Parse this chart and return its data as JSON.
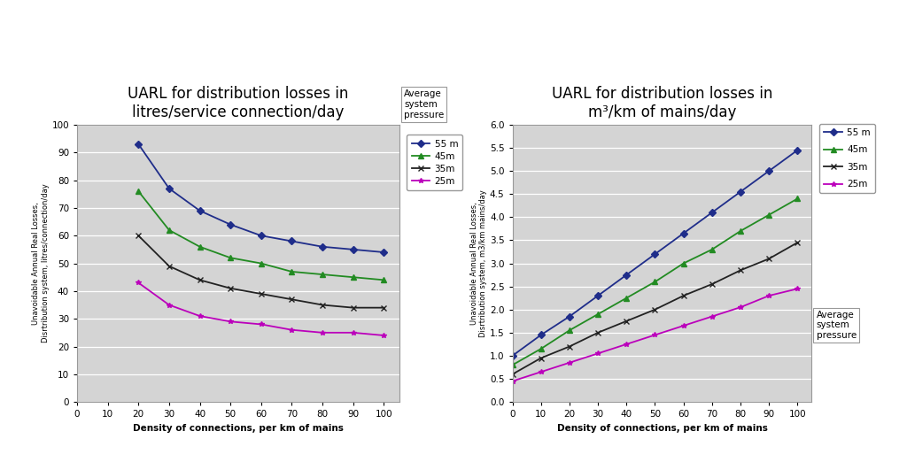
{
  "chart1": {
    "title": "UARL for distribution losses in\nlitres/service connection/day",
    "xlabel": "Density of connections, per km of mains",
    "ylabel": "Unavoidable Annual Real Losses,\nDisrtribution system, litres/connection/day",
    "xlim": [
      0,
      105
    ],
    "ylim": [
      0,
      100
    ],
    "xticks": [
      0,
      10,
      20,
      30,
      40,
      50,
      60,
      70,
      80,
      90,
      100
    ],
    "yticks": [
      0,
      10,
      20,
      30,
      40,
      50,
      60,
      70,
      80,
      90,
      100
    ],
    "series": {
      "55 m": {
        "x": [
          20,
          30,
          40,
          50,
          60,
          70,
          80,
          90,
          100
        ],
        "y": [
          93,
          77,
          69,
          64,
          60,
          58,
          56,
          55,
          54
        ],
        "color": "#1F2D8A",
        "marker": "D",
        "linestyle": "-"
      },
      "45m": {
        "x": [
          20,
          30,
          40,
          50,
          60,
          70,
          80,
          90,
          100
        ],
        "y": [
          76,
          62,
          56,
          52,
          50,
          47,
          46,
          45,
          44
        ],
        "color": "#228B22",
        "marker": "^",
        "linestyle": "-"
      },
      "35m": {
        "x": [
          20,
          30,
          40,
          50,
          60,
          70,
          80,
          90,
          100
        ],
        "y": [
          60,
          49,
          44,
          41,
          39,
          37,
          35,
          34,
          34
        ],
        "color": "#222222",
        "marker": "x",
        "linestyle": "-"
      },
      "25m": {
        "x": [
          20,
          30,
          40,
          50,
          60,
          70,
          80,
          90,
          100
        ],
        "y": [
          43,
          35,
          31,
          29,
          28,
          26,
          25,
          25,
          24
        ],
        "color": "#BB00BB",
        "marker": "*",
        "linestyle": "-"
      }
    }
  },
  "chart2": {
    "title": "UARL for distribution losses in\nm³/km of mains/day",
    "xlabel": "Density of connections, per km of mains",
    "ylabel": "Unavoidable Annual Real Losses,\nDisrtribution system, m3/km mains/day",
    "xlim": [
      0,
      105
    ],
    "ylim": [
      0.0,
      6.0
    ],
    "xticks": [
      0,
      10,
      20,
      30,
      40,
      50,
      60,
      70,
      80,
      90,
      100
    ],
    "yticks": [
      0.0,
      0.5,
      1.0,
      1.5,
      2.0,
      2.5,
      3.0,
      3.5,
      4.0,
      4.5,
      5.0,
      5.5,
      6.0
    ],
    "series": {
      "55 m": {
        "x": [
          0,
          10,
          20,
          30,
          40,
          50,
          60,
          70,
          80,
          90,
          100
        ],
        "y": [
          1.0,
          1.45,
          1.85,
          2.3,
          2.75,
          3.2,
          3.65,
          4.1,
          4.55,
          5.0,
          5.45
        ],
        "color": "#1F2D8A",
        "marker": "D",
        "linestyle": "-"
      },
      "45m": {
        "x": [
          0,
          10,
          20,
          30,
          40,
          50,
          60,
          70,
          80,
          90,
          100
        ],
        "y": [
          0.8,
          1.15,
          1.55,
          1.9,
          2.25,
          2.6,
          3.0,
          3.3,
          3.7,
          4.05,
          4.4
        ],
        "color": "#228B22",
        "marker": "^",
        "linestyle": "-"
      },
      "35m": {
        "x": [
          0,
          10,
          20,
          30,
          40,
          50,
          60,
          70,
          80,
          90,
          100
        ],
        "y": [
          0.6,
          0.95,
          1.2,
          1.5,
          1.75,
          2.0,
          2.3,
          2.55,
          2.85,
          3.1,
          3.45
        ],
        "color": "#222222",
        "marker": "x",
        "linestyle": "-"
      },
      "25m": {
        "x": [
          0,
          10,
          20,
          30,
          40,
          50,
          60,
          70,
          80,
          90,
          100
        ],
        "y": [
          0.45,
          0.65,
          0.85,
          1.05,
          1.25,
          1.45,
          1.65,
          1.85,
          2.05,
          2.3,
          2.45
        ],
        "color": "#BB00BB",
        "marker": "*",
        "linestyle": "-"
      }
    }
  },
  "background_color": "#FFFFFF",
  "plot_bg_color": "#D4D4D4",
  "title_fontsize": 12,
  "label_fontsize": 7,
  "tick_fontsize": 7.5,
  "legend_fontsize": 7.5,
  "line_width": 1.3,
  "marker_size": 4
}
